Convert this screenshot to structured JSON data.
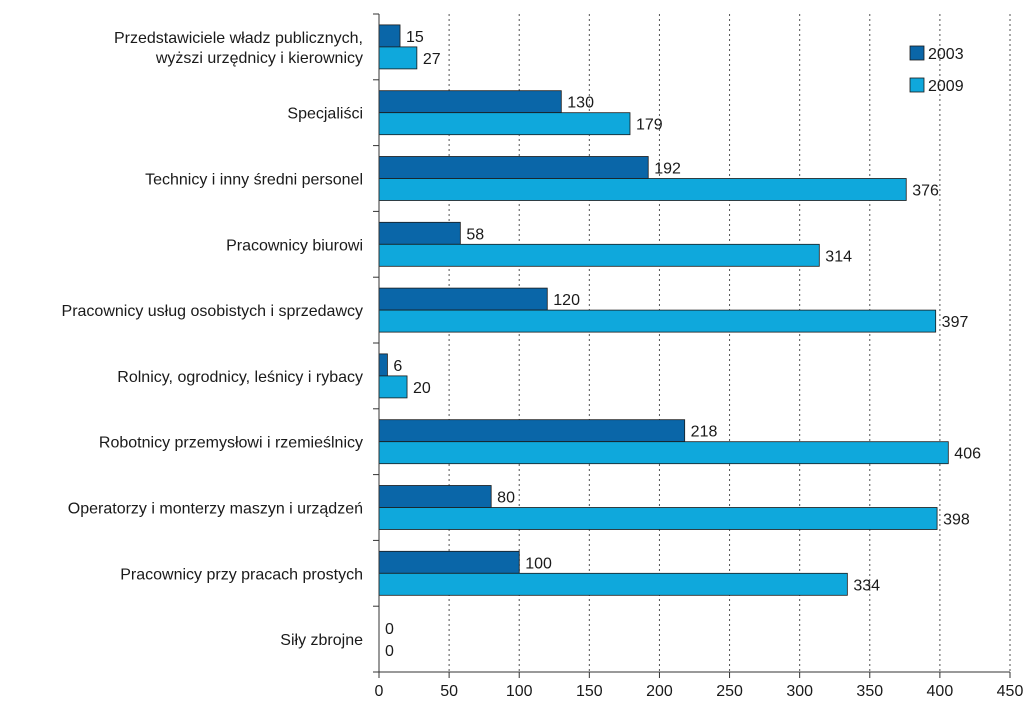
{
  "chart_data": {
    "type": "bar",
    "orientation": "horizontal",
    "title": "",
    "xlabel": "",
    "ylabel": "",
    "xlim": [
      0,
      450
    ],
    "x_ticks": [
      0,
      50,
      100,
      150,
      200,
      250,
      300,
      350,
      400,
      450
    ],
    "grid": "vertical dotted",
    "legend_position": "top-right",
    "categories": [
      [
        "Przedstawiciele władz publicznych,",
        "wyższi urzędnicy i kierownicy"
      ],
      [
        "Specjaliści"
      ],
      [
        "Technicy i inny średni personel"
      ],
      [
        "Pracownicy biurowi"
      ],
      [
        "Pracownicy usług osobistych i sprzedawcy"
      ],
      [
        "Rolnicy, ogrodnicy, leśnicy i rybacy"
      ],
      [
        "Robotnicy przemysłowi i rzemieślnicy"
      ],
      [
        "Operatorzy i monterzy maszyn i urządzeń"
      ],
      [
        "Pracownicy przy pracach prostych"
      ],
      [
        "Siły zbrojne"
      ]
    ],
    "series": [
      {
        "name": "2003",
        "color": "#0a66a8",
        "values": [
          15,
          130,
          192,
          58,
          120,
          6,
          218,
          80,
          100,
          0
        ]
      },
      {
        "name": "2009",
        "color": "#0fa8dc",
        "values": [
          27,
          179,
          376,
          314,
          397,
          20,
          406,
          398,
          334,
          0
        ]
      }
    ]
  }
}
